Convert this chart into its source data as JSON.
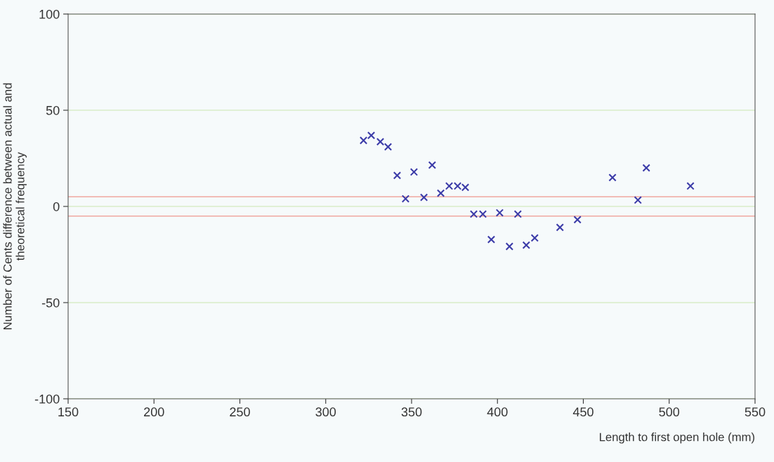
{
  "chart_data": {
    "type": "scatter",
    "xlabel": "Length to first open hole (mm)",
    "ylabel": "Number of Cents difference between actual and\ntheoretical frequency",
    "x": [
      322,
      326.5,
      331.8,
      336.3,
      341.6,
      346.5,
      351.4,
      357.2,
      362,
      367,
      371.9,
      376.8,
      381.3,
      386.2,
      391.5,
      396.4,
      401.3,
      407,
      411.9,
      416.8,
      421.7,
      436.4,
      446.6,
      467,
      481.8,
      486.7,
      512.4
    ],
    "values": [
      34.3,
      36.9,
      33.6,
      31,
      16.1,
      4,
      17.9,
      4.7,
      21.5,
      6.9,
      10.6,
      10.6,
      9.9,
      -4,
      -4,
      -17.2,
      -3.3,
      -20.8,
      -4,
      -20.1,
      -16.4,
      -10.9,
      -6.9,
      15,
      3.3,
      20,
      10.6
    ],
    "color": "#3b3ba8",
    "marker": "cross",
    "xlim": [
      150,
      550
    ],
    "xticks": [
      150,
      200,
      250,
      300,
      350,
      400,
      450,
      500,
      550
    ],
    "ylim": [
      -100,
      100
    ],
    "yticks": [
      -100,
      -50,
      0,
      50,
      100
    ],
    "grid": "y",
    "ref_lines": [
      {
        "axis": "y",
        "value": 5,
        "color": "#f0a8a0"
      },
      {
        "axis": "y",
        "value": -5,
        "color": "#f0a8a0"
      }
    ]
  }
}
